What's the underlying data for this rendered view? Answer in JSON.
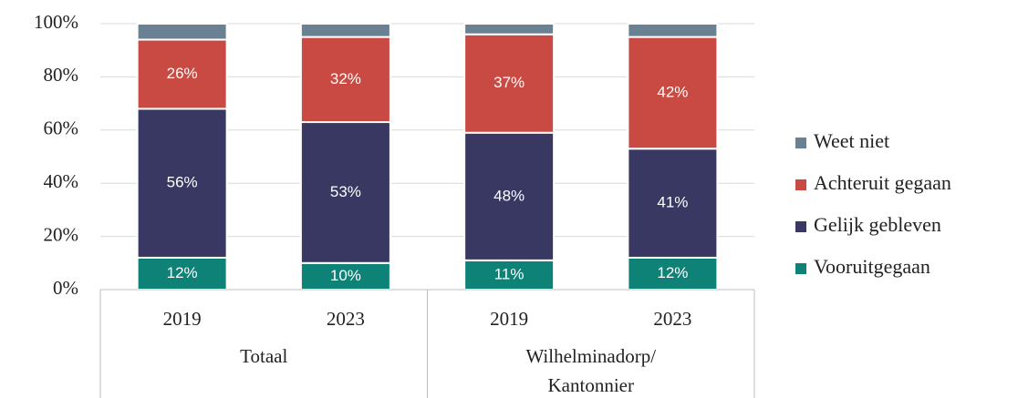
{
  "chart_data": {
    "type": "stacked_bar",
    "categories": [
      "2019",
      "2023",
      "2019",
      "2023"
    ],
    "groups": [
      [
        "Totaal"
      ],
      [
        "Wilhelminadorp/",
        "Kantonnier"
      ]
    ],
    "series": [
      {
        "name": "Vooruitgegaan",
        "color": "#0f8278",
        "values": [
          12,
          10,
          11,
          12
        ],
        "value_labels": [
          "12%",
          "10%",
          "11%",
          "12%"
        ]
      },
      {
        "name": "Gelijk gebleven",
        "color": "#383863",
        "values": [
          56,
          53,
          48,
          41
        ],
        "value_labels": [
          "56%",
          "53%",
          "48%",
          "41%"
        ]
      },
      {
        "name": "Achteruit gegaan",
        "color": "#c84a42",
        "values": [
          26,
          32,
          37,
          42
        ],
        "value_labels": [
          "26%",
          "32%",
          "37%",
          "42%"
        ]
      },
      {
        "name": "Weet niet",
        "color": "#6a8193",
        "values": [
          6,
          5,
          4,
          5
        ]
      }
    ],
    "ylim": [
      0,
      100
    ],
    "yticks": [
      {
        "value": 0,
        "label": "0%"
      },
      {
        "value": 20,
        "label": "20%"
      },
      {
        "value": 40,
        "label": "40%"
      },
      {
        "value": 60,
        "label": "60%"
      },
      {
        "value": 80,
        "label": "80%"
      },
      {
        "value": 100,
        "label": "100%"
      }
    ],
    "grid": true,
    "legend": "right"
  }
}
